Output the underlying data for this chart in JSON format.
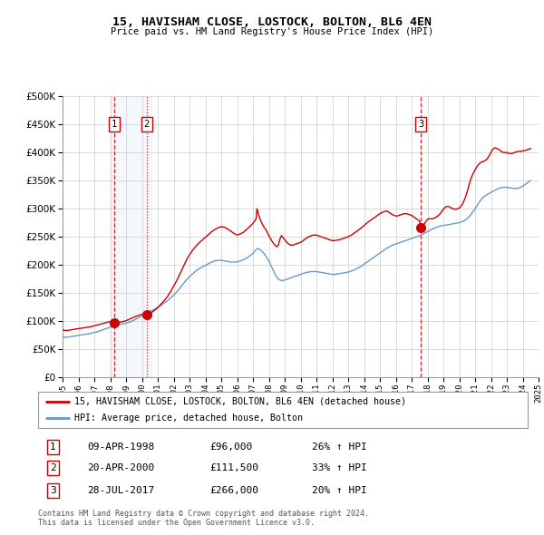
{
  "title": "15, HAVISHAM CLOSE, LOSTOCK, BOLTON, BL6 4EN",
  "subtitle": "Price paid vs. HM Land Registry's House Price Index (HPI)",
  "red_color": "#cc0000",
  "blue_color": "#6699cc",
  "legend_line1": "15, HAVISHAM CLOSE, LOSTOCK, BOLTON, BL6 4EN (detached house)",
  "legend_line2": "HPI: Average price, detached house, Bolton",
  "transactions": [
    {
      "num": 1,
      "date": "09-APR-1998",
      "price": "£96,000",
      "hpi": "26% ↑ HPI",
      "x_year": 1998.27,
      "y_val": 96000,
      "vline": "solid"
    },
    {
      "num": 2,
      "date": "20-APR-2000",
      "price": "£111,500",
      "hpi": "33% ↑ HPI",
      "x_year": 2000.3,
      "y_val": 111500,
      "vline": "dashed"
    },
    {
      "num": 3,
      "date": "28-JUL-2017",
      "price": "£266,000",
      "hpi": "20% ↑ HPI",
      "x_year": 2017.57,
      "y_val": 266000,
      "vline": "solid"
    }
  ],
  "footer": "Contains HM Land Registry data © Crown copyright and database right 2024.\nThis data is licensed under the Open Government Licence v3.0.",
  "xlim": [
    1995.0,
    2025.0
  ],
  "ylim": [
    0,
    500000
  ],
  "blue_pts": [
    [
      1995.0,
      72000
    ],
    [
      1995.1,
      71500
    ],
    [
      1995.2,
      71000
    ],
    [
      1995.3,
      71200
    ],
    [
      1995.5,
      72000
    ],
    [
      1995.7,
      73000
    ],
    [
      1995.9,
      74000
    ],
    [
      1996.0,
      74500
    ],
    [
      1996.2,
      75200
    ],
    [
      1996.4,
      76000
    ],
    [
      1996.6,
      77000
    ],
    [
      1996.8,
      78000
    ],
    [
      1997.0,
      79500
    ],
    [
      1997.2,
      81000
    ],
    [
      1997.4,
      83000
    ],
    [
      1997.6,
      85000
    ],
    [
      1997.8,
      87000
    ],
    [
      1998.0,
      89000
    ],
    [
      1998.2,
      91000
    ],
    [
      1998.4,
      93000
    ],
    [
      1998.6,
      94000
    ],
    [
      1998.8,
      95000
    ],
    [
      1999.0,
      96000
    ],
    [
      1999.2,
      98000
    ],
    [
      1999.4,
      100000
    ],
    [
      1999.6,
      103000
    ],
    [
      1999.8,
      106000
    ],
    [
      2000.0,
      109000
    ],
    [
      2000.2,
      112000
    ],
    [
      2000.4,
      115000
    ],
    [
      2000.6,
      118000
    ],
    [
      2000.8,
      121000
    ],
    [
      2001.0,
      124000
    ],
    [
      2001.2,
      128000
    ],
    [
      2001.4,
      132000
    ],
    [
      2001.6,
      136000
    ],
    [
      2001.8,
      141000
    ],
    [
      2002.0,
      146000
    ],
    [
      2002.2,
      152000
    ],
    [
      2002.4,
      159000
    ],
    [
      2002.6,
      166000
    ],
    [
      2002.8,
      173000
    ],
    [
      2003.0,
      179000
    ],
    [
      2003.2,
      184000
    ],
    [
      2003.4,
      189000
    ],
    [
      2003.6,
      193000
    ],
    [
      2003.8,
      196000
    ],
    [
      2004.0,
      199000
    ],
    [
      2004.2,
      202000
    ],
    [
      2004.4,
      205000
    ],
    [
      2004.6,
      207000
    ],
    [
      2004.8,
      208000
    ],
    [
      2005.0,
      208000
    ],
    [
      2005.2,
      207000
    ],
    [
      2005.4,
      206000
    ],
    [
      2005.6,
      205000
    ],
    [
      2005.8,
      205000
    ],
    [
      2006.0,
      205000
    ],
    [
      2006.2,
      207000
    ],
    [
      2006.4,
      209000
    ],
    [
      2006.6,
      212000
    ],
    [
      2006.8,
      216000
    ],
    [
      2007.0,
      220000
    ],
    [
      2007.1,
      224000
    ],
    [
      2007.2,
      227000
    ],
    [
      2007.3,
      229000
    ],
    [
      2007.4,
      228000
    ],
    [
      2007.5,
      226000
    ],
    [
      2007.6,
      223000
    ],
    [
      2007.7,
      220000
    ],
    [
      2007.8,
      216000
    ],
    [
      2007.9,
      212000
    ],
    [
      2008.0,
      207000
    ],
    [
      2008.1,
      201000
    ],
    [
      2008.2,
      195000
    ],
    [
      2008.3,
      189000
    ],
    [
      2008.4,
      183000
    ],
    [
      2008.5,
      178000
    ],
    [
      2008.6,
      175000
    ],
    [
      2008.7,
      173000
    ],
    [
      2008.8,
      172000
    ],
    [
      2008.9,
      172000
    ],
    [
      2009.0,
      173000
    ],
    [
      2009.1,
      174000
    ],
    [
      2009.2,
      175000
    ],
    [
      2009.3,
      176000
    ],
    [
      2009.4,
      177000
    ],
    [
      2009.5,
      178000
    ],
    [
      2009.6,
      179000
    ],
    [
      2009.7,
      180000
    ],
    [
      2009.8,
      181000
    ],
    [
      2009.9,
      182000
    ],
    [
      2010.0,
      183000
    ],
    [
      2010.1,
      184000
    ],
    [
      2010.2,
      185000
    ],
    [
      2010.3,
      186000
    ],
    [
      2010.4,
      186500
    ],
    [
      2010.5,
      187000
    ],
    [
      2010.6,
      187500
    ],
    [
      2010.7,
      188000
    ],
    [
      2010.8,
      188000
    ],
    [
      2010.9,
      188000
    ],
    [
      2011.0,
      188000
    ],
    [
      2011.1,
      187500
    ],
    [
      2011.2,
      187000
    ],
    [
      2011.3,
      186500
    ],
    [
      2011.4,
      186000
    ],
    [
      2011.5,
      185500
    ],
    [
      2011.6,
      185000
    ],
    [
      2011.7,
      184500
    ],
    [
      2011.8,
      184000
    ],
    [
      2011.9,
      183500
    ],
    [
      2012.0,
      183000
    ],
    [
      2012.1,
      183000
    ],
    [
      2012.2,
      183200
    ],
    [
      2012.3,
      183500
    ],
    [
      2012.4,
      184000
    ],
    [
      2012.5,
      184500
    ],
    [
      2012.6,
      185000
    ],
    [
      2012.7,
      185500
    ],
    [
      2012.8,
      186000
    ],
    [
      2012.9,
      186500
    ],
    [
      2013.0,
      187000
    ],
    [
      2013.2,
      189000
    ],
    [
      2013.4,
      191000
    ],
    [
      2013.6,
      194000
    ],
    [
      2013.8,
      197000
    ],
    [
      2014.0,
      201000
    ],
    [
      2014.2,
      205000
    ],
    [
      2014.4,
      209000
    ],
    [
      2014.6,
      213000
    ],
    [
      2014.8,
      217000
    ],
    [
      2015.0,
      221000
    ],
    [
      2015.2,
      225000
    ],
    [
      2015.4,
      229000
    ],
    [
      2015.6,
      232000
    ],
    [
      2015.8,
      235000
    ],
    [
      2016.0,
      237000
    ],
    [
      2016.2,
      239000
    ],
    [
      2016.4,
      241000
    ],
    [
      2016.6,
      243000
    ],
    [
      2016.8,
      245000
    ],
    [
      2017.0,
      247000
    ],
    [
      2017.2,
      249000
    ],
    [
      2017.4,
      251000
    ],
    [
      2017.6,
      253000
    ],
    [
      2017.8,
      256000
    ],
    [
      2018.0,
      259000
    ],
    [
      2018.2,
      262000
    ],
    [
      2018.4,
      265000
    ],
    [
      2018.6,
      267000
    ],
    [
      2018.8,
      269000
    ],
    [
      2019.0,
      270000
    ],
    [
      2019.2,
      271000
    ],
    [
      2019.4,
      272000
    ],
    [
      2019.6,
      273000
    ],
    [
      2019.8,
      274000
    ],
    [
      2020.0,
      275000
    ],
    [
      2020.2,
      277000
    ],
    [
      2020.4,
      280000
    ],
    [
      2020.6,
      285000
    ],
    [
      2020.8,
      292000
    ],
    [
      2021.0,
      300000
    ],
    [
      2021.2,
      309000
    ],
    [
      2021.4,
      317000
    ],
    [
      2021.6,
      322000
    ],
    [
      2021.8,
      326000
    ],
    [
      2022.0,
      329000
    ],
    [
      2022.2,
      332000
    ],
    [
      2022.4,
      335000
    ],
    [
      2022.6,
      337000
    ],
    [
      2022.8,
      338000
    ],
    [
      2023.0,
      338000
    ],
    [
      2023.2,
      337000
    ],
    [
      2023.4,
      336000
    ],
    [
      2023.6,
      336000
    ],
    [
      2023.8,
      337000
    ],
    [
      2024.0,
      340000
    ],
    [
      2024.2,
      344000
    ],
    [
      2024.5,
      350000
    ]
  ],
  "red_pts": [
    [
      1995.0,
      84000
    ],
    [
      1995.1,
      83500
    ],
    [
      1995.2,
      83000
    ],
    [
      1995.3,
      83200
    ],
    [
      1995.5,
      84000
    ],
    [
      1995.7,
      85000
    ],
    [
      1995.9,
      86000
    ],
    [
      1996.0,
      86500
    ],
    [
      1996.2,
      87200
    ],
    [
      1996.4,
      88000
    ],
    [
      1996.6,
      89000
    ],
    [
      1996.8,
      90000
    ],
    [
      1997.0,
      91500
    ],
    [
      1997.2,
      93000
    ],
    [
      1997.4,
      94500
    ],
    [
      1997.6,
      96000
    ],
    [
      1997.8,
      97500
    ],
    [
      1998.0,
      99000
    ],
    [
      1998.1,
      98500
    ],
    [
      1998.2,
      98000
    ],
    [
      1998.27,
      96000
    ],
    [
      1998.3,
      96500
    ],
    [
      1998.4,
      97000
    ],
    [
      1998.5,
      97500
    ],
    [
      1998.6,
      98000
    ],
    [
      1998.8,
      99000
    ],
    [
      1999.0,
      100500
    ],
    [
      1999.2,
      103000
    ],
    [
      1999.4,
      105500
    ],
    [
      1999.6,
      108000
    ],
    [
      1999.8,
      110000
    ],
    [
      2000.0,
      112000
    ],
    [
      2000.1,
      112500
    ],
    [
      2000.2,
      112800
    ],
    [
      2000.3,
      111500
    ],
    [
      2000.4,
      112000
    ],
    [
      2000.6,
      115000
    ],
    [
      2000.8,
      119000
    ],
    [
      2001.0,
      124000
    ],
    [
      2001.2,
      130000
    ],
    [
      2001.4,
      136000
    ],
    [
      2001.6,
      143000
    ],
    [
      2001.8,
      152000
    ],
    [
      2002.0,
      162000
    ],
    [
      2002.2,
      172000
    ],
    [
      2002.4,
      184000
    ],
    [
      2002.6,
      196000
    ],
    [
      2002.8,
      208000
    ],
    [
      2003.0,
      218000
    ],
    [
      2003.2,
      226000
    ],
    [
      2003.4,
      233000
    ],
    [
      2003.6,
      239000
    ],
    [
      2003.8,
      244000
    ],
    [
      2004.0,
      249000
    ],
    [
      2004.2,
      254000
    ],
    [
      2004.4,
      259000
    ],
    [
      2004.6,
      263000
    ],
    [
      2004.8,
      266000
    ],
    [
      2005.0,
      268000
    ],
    [
      2005.2,
      267000
    ],
    [
      2005.4,
      264000
    ],
    [
      2005.6,
      260000
    ],
    [
      2005.8,
      256000
    ],
    [
      2006.0,
      253000
    ],
    [
      2006.2,
      255000
    ],
    [
      2006.4,
      258000
    ],
    [
      2006.6,
      263000
    ],
    [
      2006.8,
      268000
    ],
    [
      2007.0,
      274000
    ],
    [
      2007.1,
      278000
    ],
    [
      2007.2,
      282000
    ],
    [
      2007.25,
      300000
    ],
    [
      2007.3,
      295000
    ],
    [
      2007.4,
      285000
    ],
    [
      2007.5,
      278000
    ],
    [
      2007.6,
      272000
    ],
    [
      2007.7,
      267000
    ],
    [
      2007.8,
      263000
    ],
    [
      2007.9,
      258000
    ],
    [
      2008.0,
      252000
    ],
    [
      2008.1,
      247000
    ],
    [
      2008.2,
      242000
    ],
    [
      2008.3,
      238000
    ],
    [
      2008.4,
      235000
    ],
    [
      2008.5,
      232000
    ],
    [
      2008.6,
      235000
    ],
    [
      2008.7,
      246000
    ],
    [
      2008.8,
      252000
    ],
    [
      2008.85,
      250000
    ],
    [
      2008.9,
      248000
    ],
    [
      2009.0,
      245000
    ],
    [
      2009.1,
      241000
    ],
    [
      2009.2,
      238000
    ],
    [
      2009.3,
      236000
    ],
    [
      2009.4,
      235000
    ],
    [
      2009.5,
      235000
    ],
    [
      2009.6,
      236000
    ],
    [
      2009.7,
      237000
    ],
    [
      2009.8,
      238000
    ],
    [
      2009.9,
      239000
    ],
    [
      2010.0,
      240000
    ],
    [
      2010.1,
      242000
    ],
    [
      2010.2,
      244000
    ],
    [
      2010.3,
      246000
    ],
    [
      2010.4,
      248000
    ],
    [
      2010.5,
      250000
    ],
    [
      2010.6,
      251000
    ],
    [
      2010.7,
      252000
    ],
    [
      2010.8,
      253000
    ],
    [
      2010.9,
      253000
    ],
    [
      2011.0,
      253000
    ],
    [
      2011.1,
      252000
    ],
    [
      2011.2,
      251000
    ],
    [
      2011.3,
      250000
    ],
    [
      2011.4,
      249000
    ],
    [
      2011.5,
      248000
    ],
    [
      2011.6,
      247000
    ],
    [
      2011.7,
      246000
    ],
    [
      2011.8,
      245000
    ],
    [
      2011.9,
      244000
    ],
    [
      2012.0,
      243000
    ],
    [
      2012.1,
      243000
    ],
    [
      2012.2,
      243500
    ],
    [
      2012.3,
      244000
    ],
    [
      2012.4,
      244500
    ],
    [
      2012.5,
      245000
    ],
    [
      2012.6,
      246000
    ],
    [
      2012.7,
      247000
    ],
    [
      2012.8,
      248000
    ],
    [
      2012.9,
      249000
    ],
    [
      2013.0,
      250000
    ],
    [
      2013.2,
      253000
    ],
    [
      2013.4,
      257000
    ],
    [
      2013.6,
      261000
    ],
    [
      2013.8,
      265000
    ],
    [
      2014.0,
      270000
    ],
    [
      2014.2,
      275000
    ],
    [
      2014.4,
      279000
    ],
    [
      2014.6,
      283000
    ],
    [
      2014.8,
      287000
    ],
    [
      2015.0,
      291000
    ],
    [
      2015.2,
      294000
    ],
    [
      2015.4,
      296000
    ],
    [
      2015.5,
      295000
    ],
    [
      2015.6,
      293000
    ],
    [
      2015.7,
      291000
    ],
    [
      2015.8,
      289000
    ],
    [
      2015.9,
      288000
    ],
    [
      2016.0,
      287000
    ],
    [
      2016.1,
      287000
    ],
    [
      2016.2,
      288000
    ],
    [
      2016.3,
      289000
    ],
    [
      2016.4,
      290000
    ],
    [
      2016.5,
      291000
    ],
    [
      2016.6,
      291000
    ],
    [
      2016.7,
      291000
    ],
    [
      2016.8,
      290000
    ],
    [
      2016.9,
      289000
    ],
    [
      2017.0,
      288000
    ],
    [
      2017.1,
      286000
    ],
    [
      2017.2,
      284000
    ],
    [
      2017.3,
      282000
    ],
    [
      2017.4,
      280000
    ],
    [
      2017.5,
      278000
    ],
    [
      2017.57,
      266000
    ],
    [
      2017.6,
      268000
    ],
    [
      2017.7,
      270000
    ],
    [
      2017.8,
      273000
    ],
    [
      2017.9,
      277000
    ],
    [
      2018.0,
      281000
    ],
    [
      2018.1,
      282000
    ],
    [
      2018.2,
      282000
    ],
    [
      2018.3,
      282000
    ],
    [
      2018.4,
      283000
    ],
    [
      2018.5,
      284000
    ],
    [
      2018.6,
      286000
    ],
    [
      2018.7,
      288000
    ],
    [
      2018.8,
      291000
    ],
    [
      2018.9,
      295000
    ],
    [
      2019.0,
      299000
    ],
    [
      2019.1,
      302000
    ],
    [
      2019.2,
      304000
    ],
    [
      2019.3,
      304000
    ],
    [
      2019.4,
      303000
    ],
    [
      2019.5,
      301000
    ],
    [
      2019.6,
      300000
    ],
    [
      2019.7,
      299000
    ],
    [
      2019.8,
      299000
    ],
    [
      2019.9,
      300000
    ],
    [
      2020.0,
      301000
    ],
    [
      2020.1,
      304000
    ],
    [
      2020.2,
      308000
    ],
    [
      2020.3,
      314000
    ],
    [
      2020.4,
      321000
    ],
    [
      2020.5,
      330000
    ],
    [
      2020.6,
      340000
    ],
    [
      2020.7,
      350000
    ],
    [
      2020.8,
      358000
    ],
    [
      2020.9,
      364000
    ],
    [
      2021.0,
      369000
    ],
    [
      2021.1,
      374000
    ],
    [
      2021.2,
      378000
    ],
    [
      2021.3,
      381000
    ],
    [
      2021.4,
      383000
    ],
    [
      2021.5,
      384000
    ],
    [
      2021.6,
      385000
    ],
    [
      2021.7,
      387000
    ],
    [
      2021.8,
      390000
    ],
    [
      2021.9,
      395000
    ],
    [
      2022.0,
      400000
    ],
    [
      2022.1,
      405000
    ],
    [
      2022.2,
      408000
    ],
    [
      2022.3,
      408000
    ],
    [
      2022.4,
      407000
    ],
    [
      2022.5,
      405000
    ],
    [
      2022.6,
      403000
    ],
    [
      2022.7,
      401000
    ],
    [
      2022.8,
      400000
    ],
    [
      2022.9,
      400000
    ],
    [
      2023.0,
      400000
    ],
    [
      2023.1,
      399000
    ],
    [
      2023.2,
      398000
    ],
    [
      2023.3,
      398000
    ],
    [
      2023.4,
      399000
    ],
    [
      2023.5,
      400000
    ],
    [
      2023.6,
      401000
    ],
    [
      2023.7,
      402000
    ],
    [
      2023.8,
      402000
    ],
    [
      2023.9,
      402000
    ],
    [
      2024.0,
      403000
    ],
    [
      2024.2,
      404000
    ],
    [
      2024.5,
      407000
    ]
  ]
}
